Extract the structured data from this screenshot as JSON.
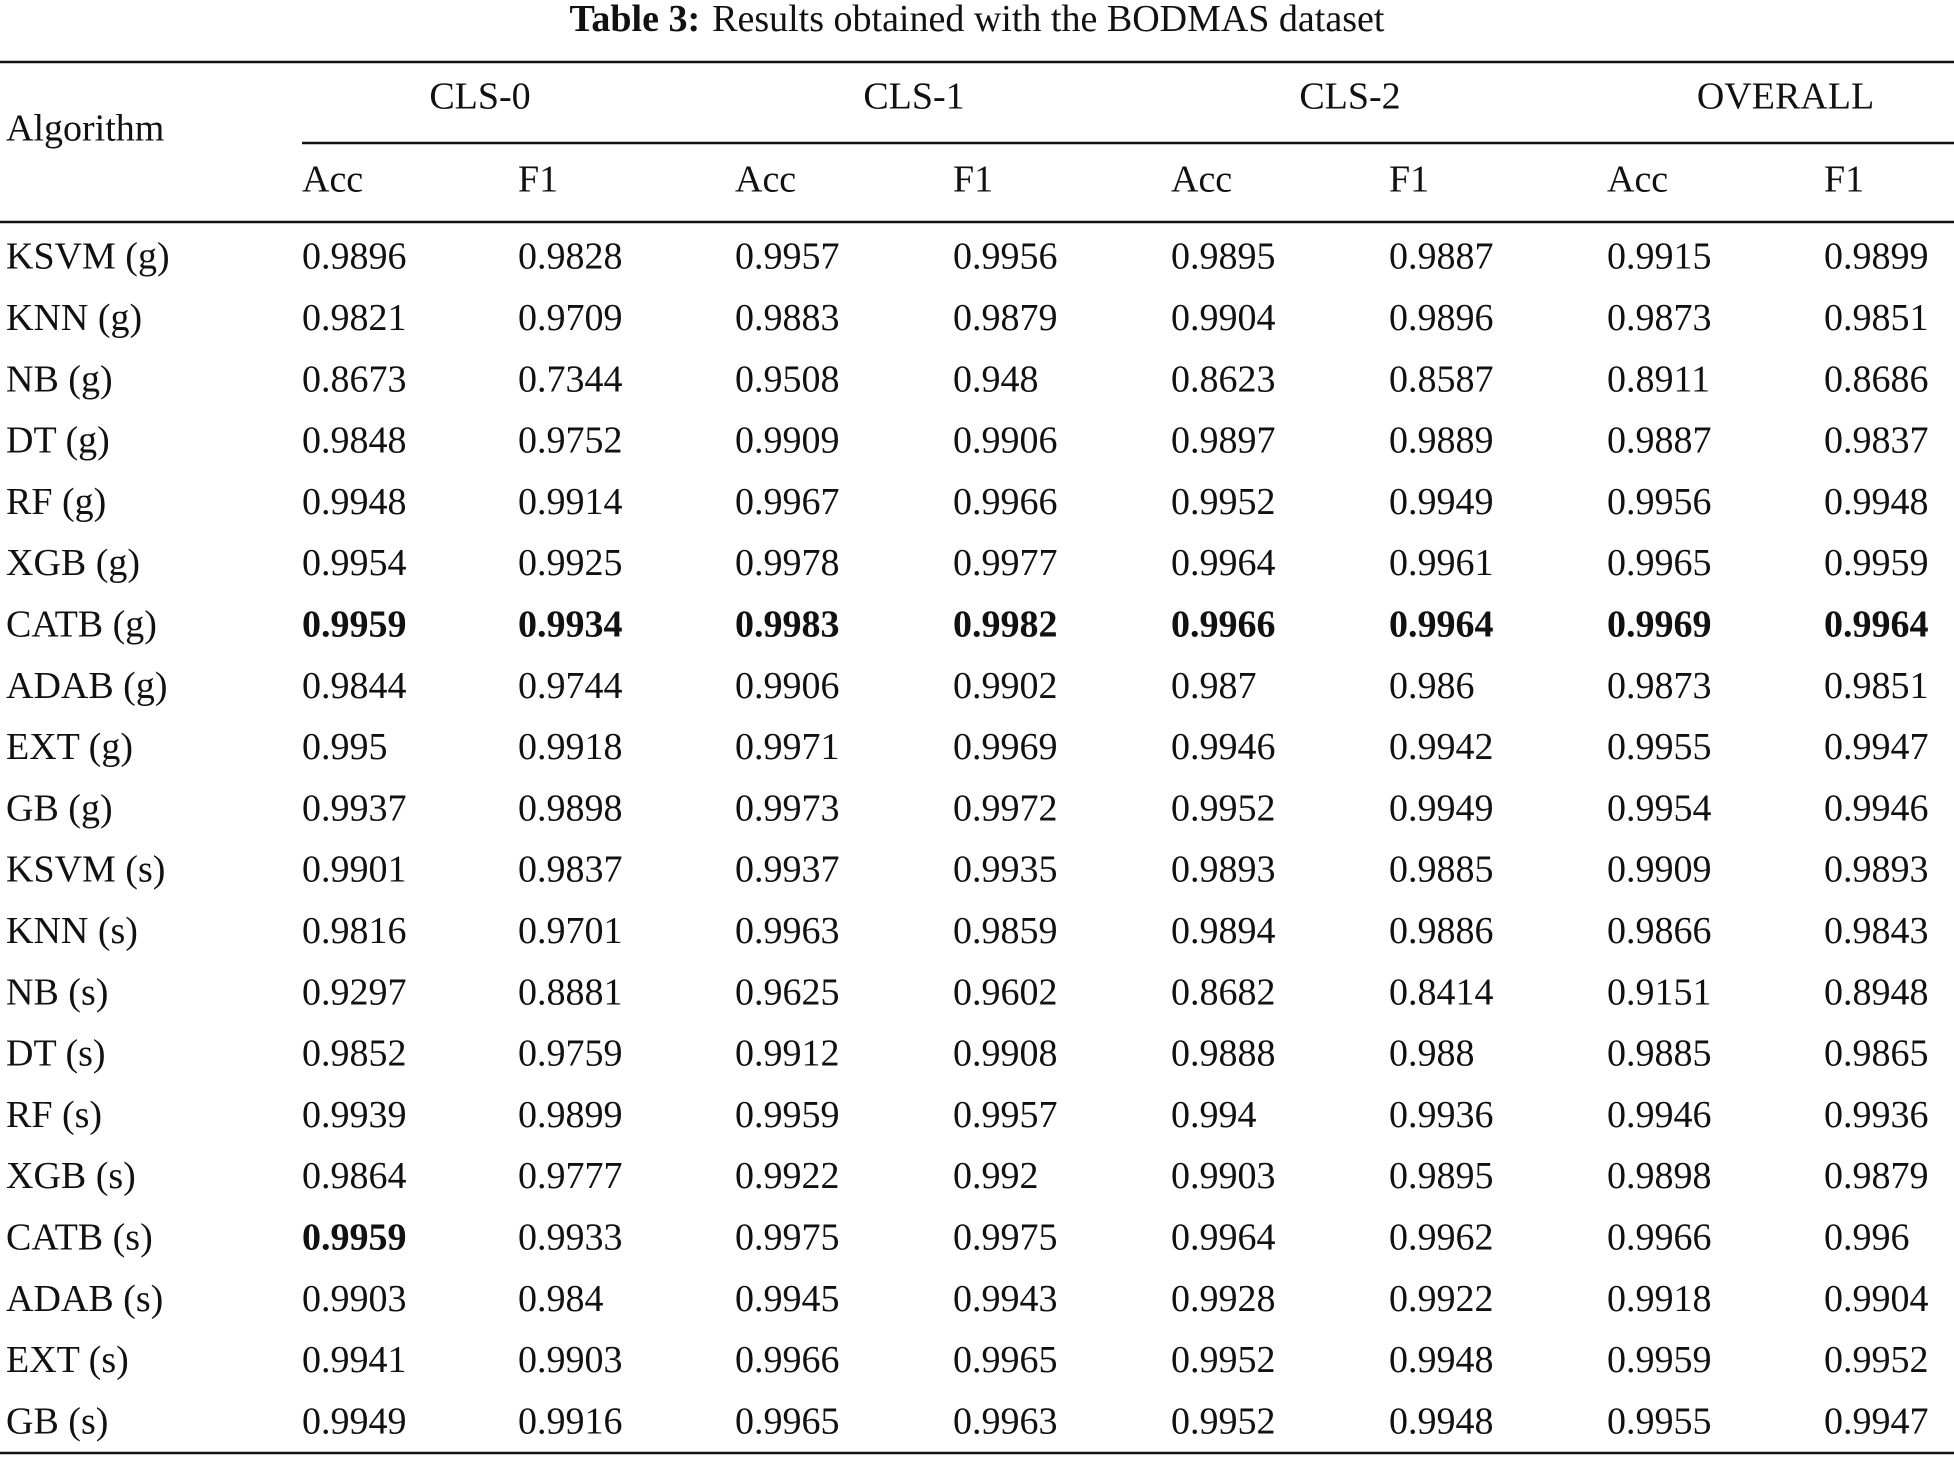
{
  "header": {
    "title_label": "Table 3:",
    "title": "Results obtained with the BODMAS dataset"
  },
  "table": {
    "corner": "Algorithm",
    "groups": [
      "CLS-0",
      "CLS-1",
      "CLS-2",
      "OVERALL"
    ],
    "subheaders": [
      "Acc",
      "F1",
      "Acc",
      "F1",
      "Acc",
      "F1",
      "Acc",
      "F1"
    ],
    "rows": [
      [
        "KSVM (g)",
        "0.9896",
        "0.9828",
        "0.9957",
        "0.9956",
        "0.9895",
        "0.9887",
        "0.9915",
        "0.9899"
      ],
      [
        "KNN (g)",
        "0.9821",
        "0.9709",
        "0.9883",
        "0.9879",
        "0.9904",
        "0.9896",
        "0.9873",
        "0.9851"
      ],
      [
        "NB (g)",
        "0.8673",
        "0.7344",
        "0.9508",
        "0.948",
        "0.8623",
        "0.8587",
        "0.8911",
        "0.8686"
      ],
      [
        "DT (g)",
        "0.9848",
        "0.9752",
        "0.9909",
        "0.9906",
        "0.9897",
        "0.9889",
        "0.9887",
        "0.9837"
      ],
      [
        "RF (g)",
        "0.9948",
        "0.9914",
        "0.9967",
        "0.9966",
        "0.9952",
        "0.9949",
        "0.9956",
        "0.9948"
      ],
      [
        "XGB (g)",
        "0.9954",
        "0.9925",
        "0.9978",
        "0.9977",
        "0.9964",
        "0.9961",
        "0.9965",
        "0.9959"
      ],
      [
        "CATB (g)",
        "0.9959",
        "0.9934",
        "0.9983",
        "0.9982",
        "0.9966",
        "0.9964",
        "0.9969",
        "0.9964"
      ],
      [
        "ADAB (g)",
        "0.9844",
        "0.9744",
        "0.9906",
        "0.9902",
        "0.987",
        "0.986",
        "0.9873",
        "0.9851"
      ],
      [
        "EXT (g)",
        "0.995",
        "0.9918",
        "0.9971",
        "0.9969",
        "0.9946",
        "0.9942",
        "0.9955",
        "0.9947"
      ],
      [
        "GB (g)",
        "0.9937",
        "0.9898",
        "0.9973",
        "0.9972",
        "0.9952",
        "0.9949",
        "0.9954",
        "0.9946"
      ],
      [
        "KSVM (s)",
        "0.9901",
        "0.9837",
        "0.9937",
        "0.9935",
        "0.9893",
        "0.9885",
        "0.9909",
        "0.9893"
      ],
      [
        "KNN (s)",
        "0.9816",
        "0.9701",
        "0.9963",
        "0.9859",
        "0.9894",
        "0.9886",
        "0.9866",
        "0.9843"
      ],
      [
        "NB (s)",
        "0.9297",
        "0.8881",
        "0.9625",
        "0.9602",
        "0.8682",
        "0.8414",
        "0.9151",
        "0.8948"
      ],
      [
        "DT (s)",
        "0.9852",
        "0.9759",
        "0.9912",
        "0.9908",
        "0.9888",
        "0.988",
        "0.9885",
        "0.9865"
      ],
      [
        "RF (s)",
        "0.9939",
        "0.9899",
        "0.9959",
        "0.9957",
        "0.994",
        "0.9936",
        "0.9946",
        "0.9936"
      ],
      [
        "XGB (s)",
        "0.9864",
        "0.9777",
        "0.9922",
        "0.992",
        "0.9903",
        "0.9895",
        "0.9898",
        "0.9879"
      ],
      [
        "CATB (s)",
        "0.9959",
        "0.9933",
        "0.9975",
        "0.9975",
        "0.9964",
        "0.9962",
        "0.9966",
        "0.996"
      ],
      [
        "ADAB (s)",
        "0.9903",
        "0.984",
        "0.9945",
        "0.9943",
        "0.9928",
        "0.9922",
        "0.9918",
        "0.9904"
      ],
      [
        "EXT (s)",
        "0.9941",
        "0.9903",
        "0.9966",
        "0.9965",
        "0.9952",
        "0.9948",
        "0.9959",
        "0.9952"
      ],
      [
        "GB (s)",
        "0.9949",
        "0.9916",
        "0.9965",
        "0.9963",
        "0.9952",
        "0.9948",
        "0.9955",
        "0.9947"
      ]
    ]
  }
}
